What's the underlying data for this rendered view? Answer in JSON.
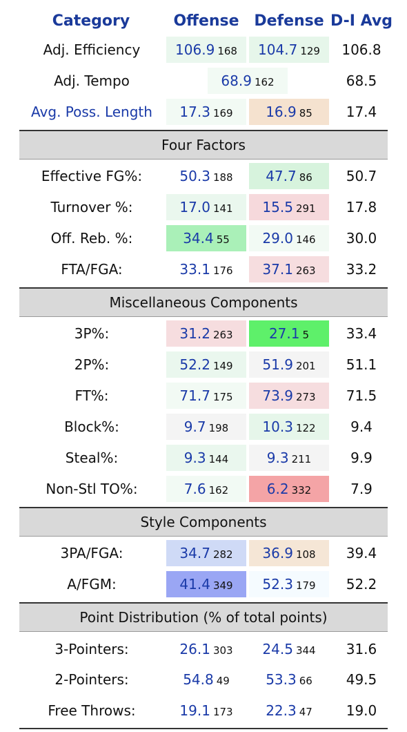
{
  "headers": {
    "category": "Category",
    "offense": "Offense",
    "defense": "Defense",
    "avg": "D-I Avg"
  },
  "rows_top": [
    {
      "label": "Adj. Efficiency",
      "off": "106.9",
      "off_rk": "168",
      "def": "104.7",
      "def_rk": "129",
      "avg": "106.8",
      "off_bg": "#eaf7ee",
      "def_bg": "#e6f6ea"
    },
    {
      "label": "Adj. Tempo",
      "tempo": "68.9",
      "tempo_rk": "162",
      "avg": "68.5",
      "tempo_bg": "#f2faf4"
    },
    {
      "label": "Avg. Poss. Length",
      "off": "17.3",
      "off_rk": "169",
      "def": "16.9",
      "def_rk": "85",
      "avg": "17.4",
      "off_bg": "#f2faf4",
      "def_bg": "#f5e2cf"
    }
  ],
  "four_factors": {
    "title": "Four Factors",
    "rows": [
      {
        "label": "Effective FG%:",
        "off": "50.3",
        "off_rk": "188",
        "def": "47.7",
        "def_rk": "86",
        "avg": "50.7",
        "off_bg": "#ffffff",
        "def_bg": "#d7f3dd"
      },
      {
        "label": "Turnover %:",
        "off": "17.0",
        "off_rk": "141",
        "def": "15.5",
        "def_rk": "291",
        "avg": "17.8",
        "off_bg": "#eaf7ee",
        "def_bg": "#f6d9dc"
      },
      {
        "label": "Off. Reb. %:",
        "off": "34.4",
        "off_rk": "55",
        "def": "29.0",
        "def_rk": "146",
        "avg": "30.0",
        "off_bg": "#aaf0b8",
        "def_bg": "#f2faf4"
      },
      {
        "label": "FTA/FGA:",
        "off": "33.1",
        "off_rk": "176",
        "def": "37.1",
        "def_rk": "263",
        "avg": "33.2",
        "off_bg": "#ffffff",
        "def_bg": "#f6dddf"
      }
    ]
  },
  "misc": {
    "title": "Miscellaneous Components",
    "rows": [
      {
        "label": "3P%:",
        "off": "31.2",
        "off_rk": "263",
        "def": "27.1",
        "def_rk": "5",
        "avg": "33.4",
        "off_bg": "#f6dddf",
        "def_bg": "#5ef06a"
      },
      {
        "label": "2P%:",
        "off": "52.2",
        "off_rk": "149",
        "def": "51.9",
        "def_rk": "201",
        "avg": "51.1",
        "off_bg": "#eaf7ee",
        "def_bg": "#f4f4f4"
      },
      {
        "label": "FT%:",
        "off": "71.7",
        "off_rk": "175",
        "def": "73.9",
        "def_rk": "273",
        "avg": "71.5",
        "off_bg": "#f2faf4",
        "def_bg": "#f6dddf"
      },
      {
        "label": "Block%:",
        "off": "9.7",
        "off_rk": "198",
        "def": "10.3",
        "def_rk": "122",
        "avg": "9.4",
        "off_bg": "#f4f4f4",
        "def_bg": "#e6f6ea"
      },
      {
        "label": "Steal%:",
        "off": "9.3",
        "off_rk": "144",
        "def": "9.3",
        "def_rk": "211",
        "avg": "9.9",
        "off_bg": "#eaf7ee",
        "def_bg": "#f4f4f4"
      },
      {
        "label": "Non-Stl TO%:",
        "off": "7.6",
        "off_rk": "162",
        "def": "6.2",
        "def_rk": "332",
        "avg": "7.9",
        "off_bg": "#f2faf4",
        "def_bg": "#f4a4a6"
      }
    ]
  },
  "style": {
    "title": "Style Components",
    "rows": [
      {
        "label": "3PA/FGA:",
        "off": "34.7",
        "off_rk": "282",
        "def": "36.9",
        "def_rk": "108",
        "avg": "39.4",
        "off_bg": "#cfdaf6",
        "def_bg": "#f5e6d6"
      },
      {
        "label": "A/FGM:",
        "off": "41.4",
        "off_rk": "349",
        "def": "52.3",
        "def_rk": "179",
        "avg": "52.2",
        "off_bg": "#9aa6f4",
        "def_bg": "#f5fbff"
      }
    ]
  },
  "points": {
    "title": "Point Distribution (% of total points)",
    "rows": [
      {
        "label": "3-Pointers:",
        "off": "26.1",
        "off_rk": "303",
        "def": "24.5",
        "def_rk": "344",
        "avg": "31.6",
        "off_bg": "#ffffff",
        "def_bg": "#ffffff"
      },
      {
        "label": "2-Pointers:",
        "off": "54.8",
        "off_rk": "49",
        "def": "53.3",
        "def_rk": "66",
        "avg": "49.5",
        "off_bg": "#ffffff",
        "def_bg": "#ffffff"
      },
      {
        "label": "Free Throws:",
        "off": "19.1",
        "off_rk": "173",
        "def": "22.3",
        "def_rk": "47",
        "avg": "19.0",
        "off_bg": "#ffffff",
        "def_bg": "#ffffff"
      }
    ]
  }
}
